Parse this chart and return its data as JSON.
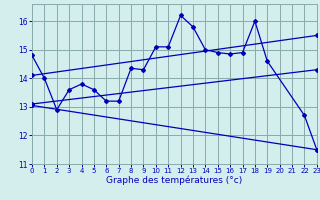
{
  "background_color": "#d4eeee",
  "line_color": "#0000bb",
  "grid_color": "#88aaaa",
  "xlabel": "Graphe des températures (°c)",
  "xlim": [
    0,
    23
  ],
  "ylim": [
    11.0,
    16.6
  ],
  "yticks": [
    11,
    12,
    13,
    14,
    15,
    16
  ],
  "xticks": [
    0,
    1,
    2,
    3,
    4,
    5,
    6,
    7,
    8,
    9,
    10,
    11,
    12,
    13,
    14,
    15,
    16,
    17,
    18,
    19,
    20,
    21,
    22,
    23
  ],
  "curve_main": {
    "x": [
      0,
      1,
      2,
      3,
      4,
      5,
      6,
      7,
      8,
      9,
      10,
      11,
      12,
      13,
      14,
      15,
      16,
      17,
      18,
      19,
      22,
      23
    ],
    "y": [
      14.8,
      14.0,
      12.9,
      13.6,
      13.8,
      13.6,
      13.2,
      13.2,
      14.35,
      14.3,
      15.1,
      15.1,
      16.2,
      15.8,
      15.0,
      14.9,
      14.85,
      14.9,
      16.0,
      14.6,
      12.7,
      11.5
    ]
  },
  "trend1": {
    "x": [
      0,
      23
    ],
    "y": [
      13.1,
      14.3
    ]
  },
  "trend2": {
    "x": [
      0,
      23
    ],
    "y": [
      13.05,
      11.5
    ]
  },
  "trend3": {
    "x": [
      0,
      23
    ],
    "y": [
      14.1,
      15.5
    ]
  }
}
